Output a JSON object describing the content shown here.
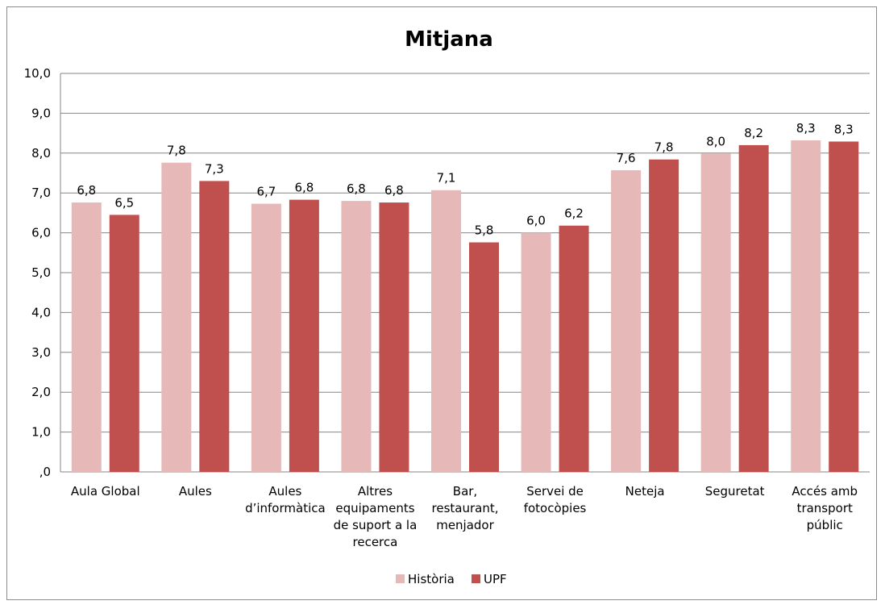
{
  "chart_data": {
    "type": "bar",
    "title": "Mitjana",
    "xlabel": "",
    "ylabel": "",
    "ylim": [
      0,
      10
    ],
    "y_ticks": [
      "10,0",
      "9,0",
      "8,0",
      "7,0",
      "6,0",
      "5,0",
      "4,0",
      "3,0",
      "2,0",
      "1,0",
      ",0"
    ],
    "grid": true,
    "legend_position": "bottom",
    "categories": [
      [
        "Aula Global"
      ],
      [
        "Aules"
      ],
      [
        "Aules",
        "d’informàtica"
      ],
      [
        "Altres",
        "equipaments",
        "de suport a la",
        "recerca"
      ],
      [
        "Bar,",
        "restaurant,",
        "menjador"
      ],
      [
        "Servei de",
        "fotocòpies"
      ],
      [
        "Neteja"
      ],
      [
        "Seguretat"
      ],
      [
        "Accés amb",
        "transport",
        "públic"
      ]
    ],
    "series": [
      {
        "name": "Història",
        "color": "#e6b9b8",
        "values": [
          6.76,
          7.76,
          6.73,
          6.8,
          7.07,
          6.0,
          7.57,
          7.99,
          8.32
        ],
        "labels": [
          "6,8",
          "7,8",
          "6,7",
          "6,8",
          "7,1",
          "6,0",
          "7,6",
          "8,0",
          "8,3"
        ]
      },
      {
        "name": "UPF",
        "color": "#c0504d",
        "values": [
          6.45,
          7.3,
          6.83,
          6.76,
          5.76,
          6.18,
          7.84,
          8.2,
          8.29
        ],
        "labels": [
          "6,5",
          "7,3",
          "6,8",
          "6,8",
          "5,8",
          "6,2",
          "7,8",
          "8,2",
          "8,3"
        ]
      }
    ]
  }
}
